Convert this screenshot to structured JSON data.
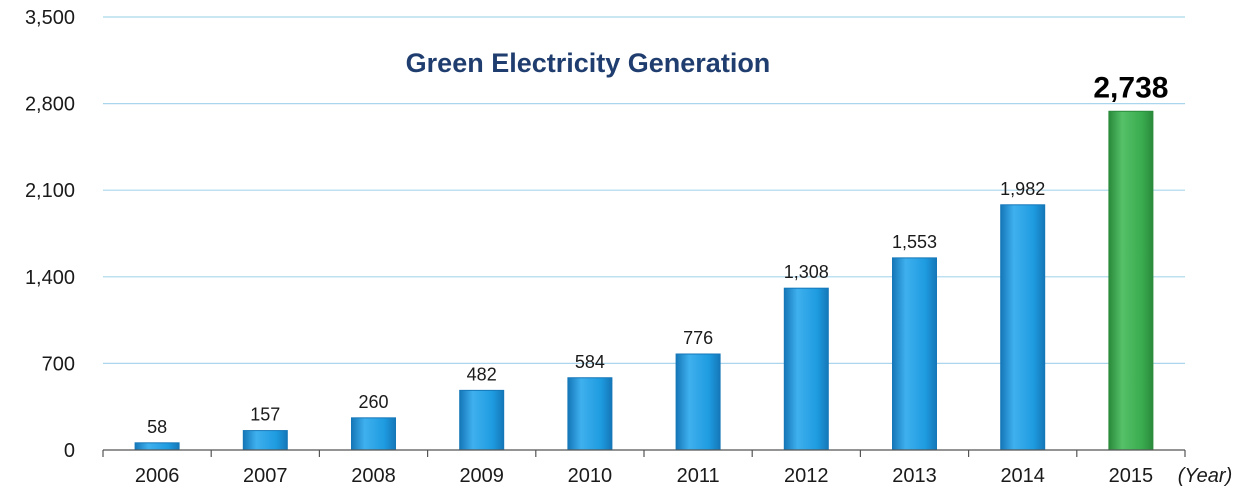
{
  "chart_data": {
    "type": "bar",
    "title": "Green Electricity Generation",
    "xlabel": "(Year)",
    "ylabel": "",
    "ylim": [
      0,
      3500
    ],
    "yticks": [
      0,
      700,
      1400,
      2100,
      2800,
      3500
    ],
    "ytick_labels": [
      "0",
      "700",
      "1,400",
      "2,100",
      "2,800",
      "3,500"
    ],
    "categories": [
      "2006",
      "2007",
      "2008",
      "2009",
      "2010",
      "2011",
      "2012",
      "2013",
      "2014",
      "2015"
    ],
    "values": [
      58,
      157,
      260,
      482,
      584,
      776,
      1308,
      1553,
      1982,
      2738
    ],
    "value_labels": [
      "58",
      "157",
      "260",
      "482",
      "584",
      "776",
      "1,308",
      "1,553",
      "1,982",
      "2,738"
    ],
    "highlight_index": 9,
    "grid": true,
    "legend": "none",
    "colors": {
      "bar": "#1e9be0",
      "bar_edge": "#1577b8",
      "highlight_bar": "#3aac4f",
      "highlight_edge": "#2a8a3b",
      "grid": "#a9d6ec",
      "axis": "#555555",
      "title": "#1f3d6e"
    }
  }
}
